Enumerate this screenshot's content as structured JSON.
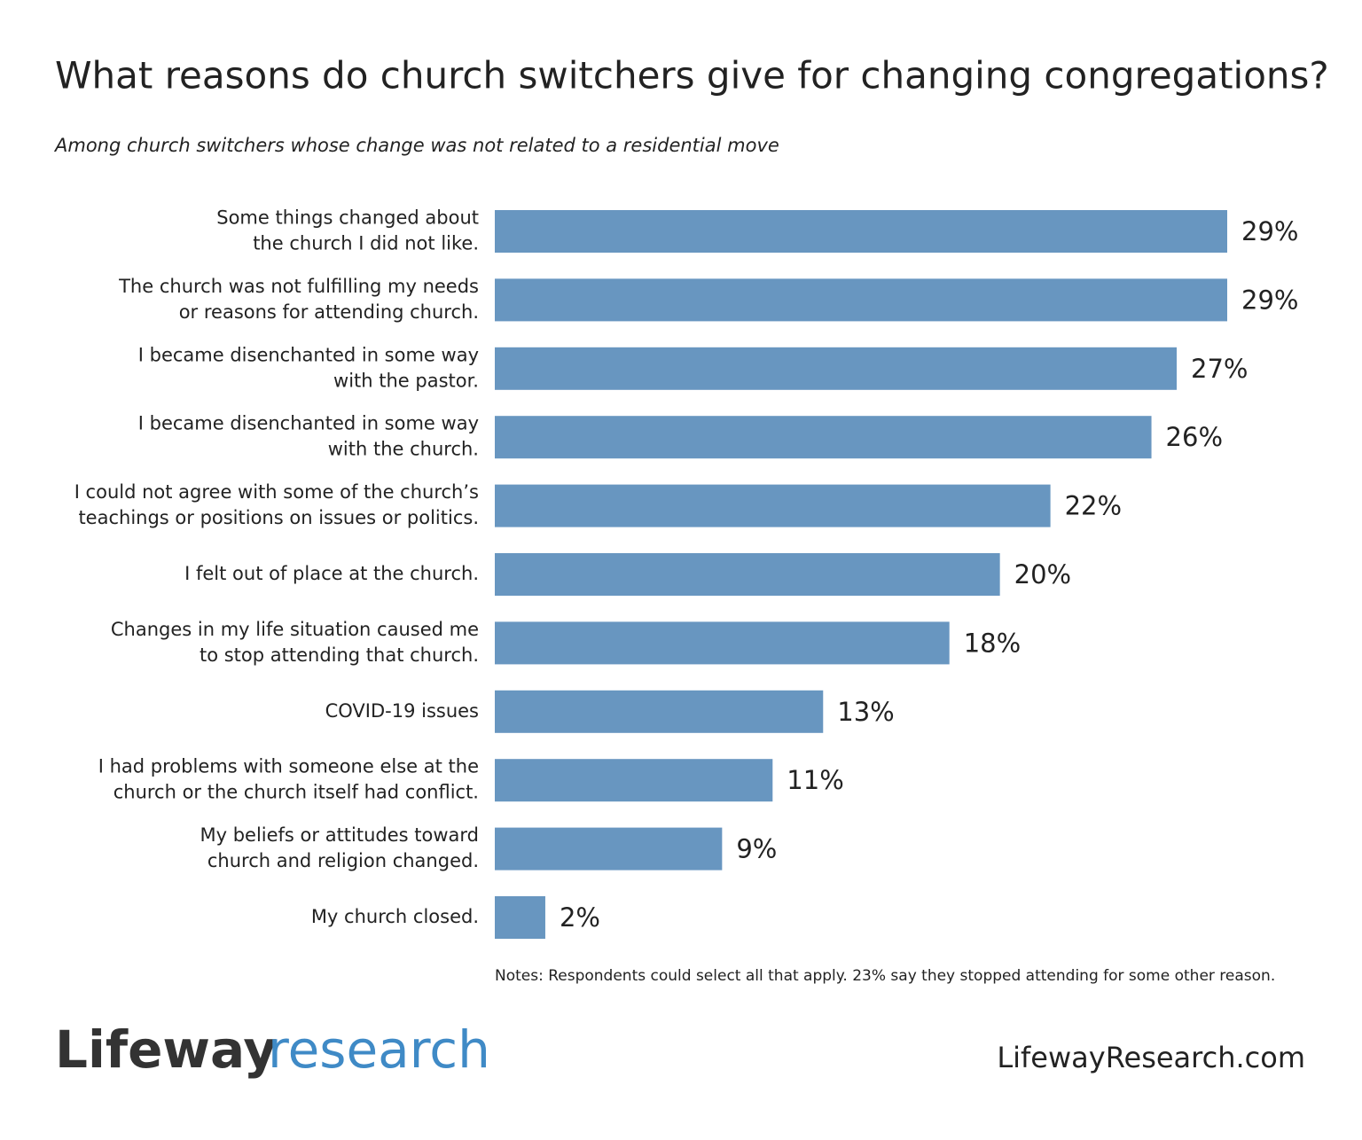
{
  "chart_data": {
    "type": "barh",
    "title": "What reasons do church switchers give for changing congregations?",
    "subtitle": "Among church switchers whose change was not related to a residential move",
    "categories": [
      [
        "Some things changed about",
        "the church I did not like."
      ],
      [
        "The church was not fulfilling my needs",
        "or reasons for attending church."
      ],
      [
        "I became disenchanted in some way",
        "with the pastor."
      ],
      [
        "I became disenchanted in some way",
        "with the church."
      ],
      [
        "I could not agree with some of the church’s",
        "teachings or positions on issues or politics."
      ],
      [
        "I felt out of place at the church."
      ],
      [
        "Changes in my life situation caused me",
        "to stop attending that church."
      ],
      [
        "COVID-19 issues"
      ],
      [
        "I had problems with someone else at the",
        "church or the church itself had conflict."
      ],
      [
        "My beliefs or attitudes toward",
        "church and religion changed."
      ],
      [
        "My church closed."
      ]
    ],
    "values": [
      29,
      29,
      27,
      26,
      22,
      20,
      18,
      13,
      11,
      9,
      2
    ],
    "value_labels": [
      "29%",
      "29%",
      "27%",
      "26%",
      "22%",
      "20%",
      "18%",
      "13%",
      "11%",
      "9%",
      "2%"
    ],
    "color": "#6896c0",
    "note": "Notes: Respondents could select all that apply. 23% say they stopped attending for some other reason."
  },
  "footer": {
    "brand": [
      "Lifeway",
      "research"
    ],
    "url": "LifewayResearch.com"
  }
}
